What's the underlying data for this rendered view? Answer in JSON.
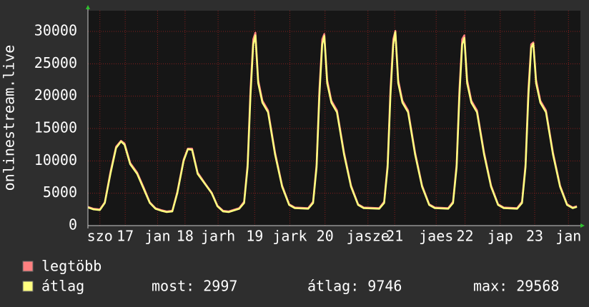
{
  "chart_data": {
    "type": "line",
    "y_label": "onlinestream.live",
    "xlim": [
      0,
      7
    ],
    "ylim": [
      0,
      33200
    ],
    "yticks": [
      0,
      5000,
      10000,
      15000,
      20000,
      25000,
      30000
    ],
    "xticks": [
      {
        "value": 0.17,
        "label": "szo"
      },
      {
        "value": 0.53,
        "label": "17"
      },
      {
        "value": 0.99,
        "label": "jan"
      },
      {
        "value": 1.38,
        "label": "18"
      },
      {
        "value": 1.85,
        "label": "jarh"
      },
      {
        "value": 2.37,
        "label": "19"
      },
      {
        "value": 2.87,
        "label": "jark"
      },
      {
        "value": 3.37,
        "label": "20"
      },
      {
        "value": 3.98,
        "label": "jasze"
      },
      {
        "value": 4.36,
        "label": "21"
      },
      {
        "value": 4.95,
        "label": "jaes"
      },
      {
        "value": 5.36,
        "label": "22"
      },
      {
        "value": 5.86,
        "label": "jap"
      },
      {
        "value": 6.35,
        "label": "23"
      },
      {
        "value": 6.83,
        "label": "jan"
      }
    ],
    "grid": true,
    "x": [
      0.0,
      0.08,
      0.17,
      0.24,
      0.32,
      0.4,
      0.47,
      0.52,
      0.6,
      0.7,
      0.8,
      0.88,
      0.96,
      1.04,
      1.12,
      1.2,
      1.27,
      1.36,
      1.42,
      1.48,
      1.56,
      1.66,
      1.76,
      1.84,
      1.92,
      2.0,
      2.15,
      2.22,
      2.27,
      2.31,
      2.35,
      2.38,
      2.42,
      2.48,
      2.56,
      2.66,
      2.76,
      2.86,
      2.94,
      3.13,
      3.2,
      3.25,
      3.29,
      3.33,
      3.36,
      3.4,
      3.46,
      3.54,
      3.64,
      3.74,
      3.84,
      3.92,
      4.14,
      4.21,
      4.26,
      4.3,
      4.34,
      4.37,
      4.41,
      4.47,
      4.55,
      4.65,
      4.75,
      4.85,
      4.93,
      5.12,
      5.19,
      5.24,
      5.28,
      5.32,
      5.35,
      5.39,
      5.45,
      5.53,
      5.63,
      5.73,
      5.83,
      5.91,
      6.1,
      6.17,
      6.22,
      6.26,
      6.3,
      6.33,
      6.37,
      6.43,
      6.51,
      6.61,
      6.71,
      6.81,
      6.89,
      6.95
    ],
    "series": [
      {
        "name": "legtöbb",
        "color": "#ff8080",
        "values": [
          2900,
          2600,
          2500,
          3600,
          8300,
          12200,
          13100,
          12700,
          9700,
          8200,
          5700,
          3600,
          2700,
          2400,
          2200,
          2300,
          5200,
          10200,
          11900,
          11900,
          8200,
          6600,
          5100,
          3100,
          2300,
          2200,
          2700,
          3700,
          9500,
          21000,
          28800,
          29800,
          22500,
          19300,
          17800,
          11300,
          6200,
          3300,
          2800,
          2700,
          3700,
          9500,
          21000,
          28800,
          29600,
          22500,
          19300,
          17800,
          11300,
          6200,
          3300,
          2800,
          2700,
          3700,
          9500,
          21000,
          28800,
          30100,
          22500,
          19300,
          17800,
          11300,
          6200,
          3300,
          2800,
          2700,
          3700,
          9500,
          21000,
          28800,
          29400,
          22500,
          19300,
          17800,
          11300,
          6200,
          3300,
          2800,
          2700,
          3700,
          9500,
          21000,
          28000,
          28300,
          22500,
          19300,
          17800,
          11300,
          6200,
          3300,
          2800,
          3000
        ]
      },
      {
        "name": "átlag",
        "color": "#ffff80",
        "values": [
          2800,
          2500,
          2400,
          3500,
          8000,
          12000,
          13000,
          12500,
          9500,
          8000,
          5500,
          3500,
          2600,
          2300,
          2100,
          2200,
          5000,
          10000,
          11800,
          11700,
          8000,
          6500,
          5000,
          3000,
          2200,
          2100,
          2600,
          3500,
          9000,
          20000,
          28000,
          29400,
          22000,
          19000,
          17500,
          11000,
          6000,
          3200,
          2700,
          2600,
          3500,
          9000,
          20000,
          28000,
          29300,
          22000,
          19000,
          17500,
          11000,
          6000,
          3200,
          2700,
          2600,
          3500,
          9000,
          20000,
          28000,
          29900,
          22000,
          19000,
          17500,
          11000,
          6000,
          3200,
          2700,
          2600,
          3500,
          9000,
          20000,
          28000,
          29000,
          22000,
          19000,
          17500,
          11000,
          6000,
          3200,
          2700,
          2600,
          3500,
          9000,
          20000,
          27500,
          28100,
          22000,
          19000,
          17500,
          11000,
          6000,
          3200,
          2700,
          2900
        ]
      }
    ],
    "stats": [
      "most: 2997",
      "átlag: 9746",
      "max: 29568"
    ]
  }
}
